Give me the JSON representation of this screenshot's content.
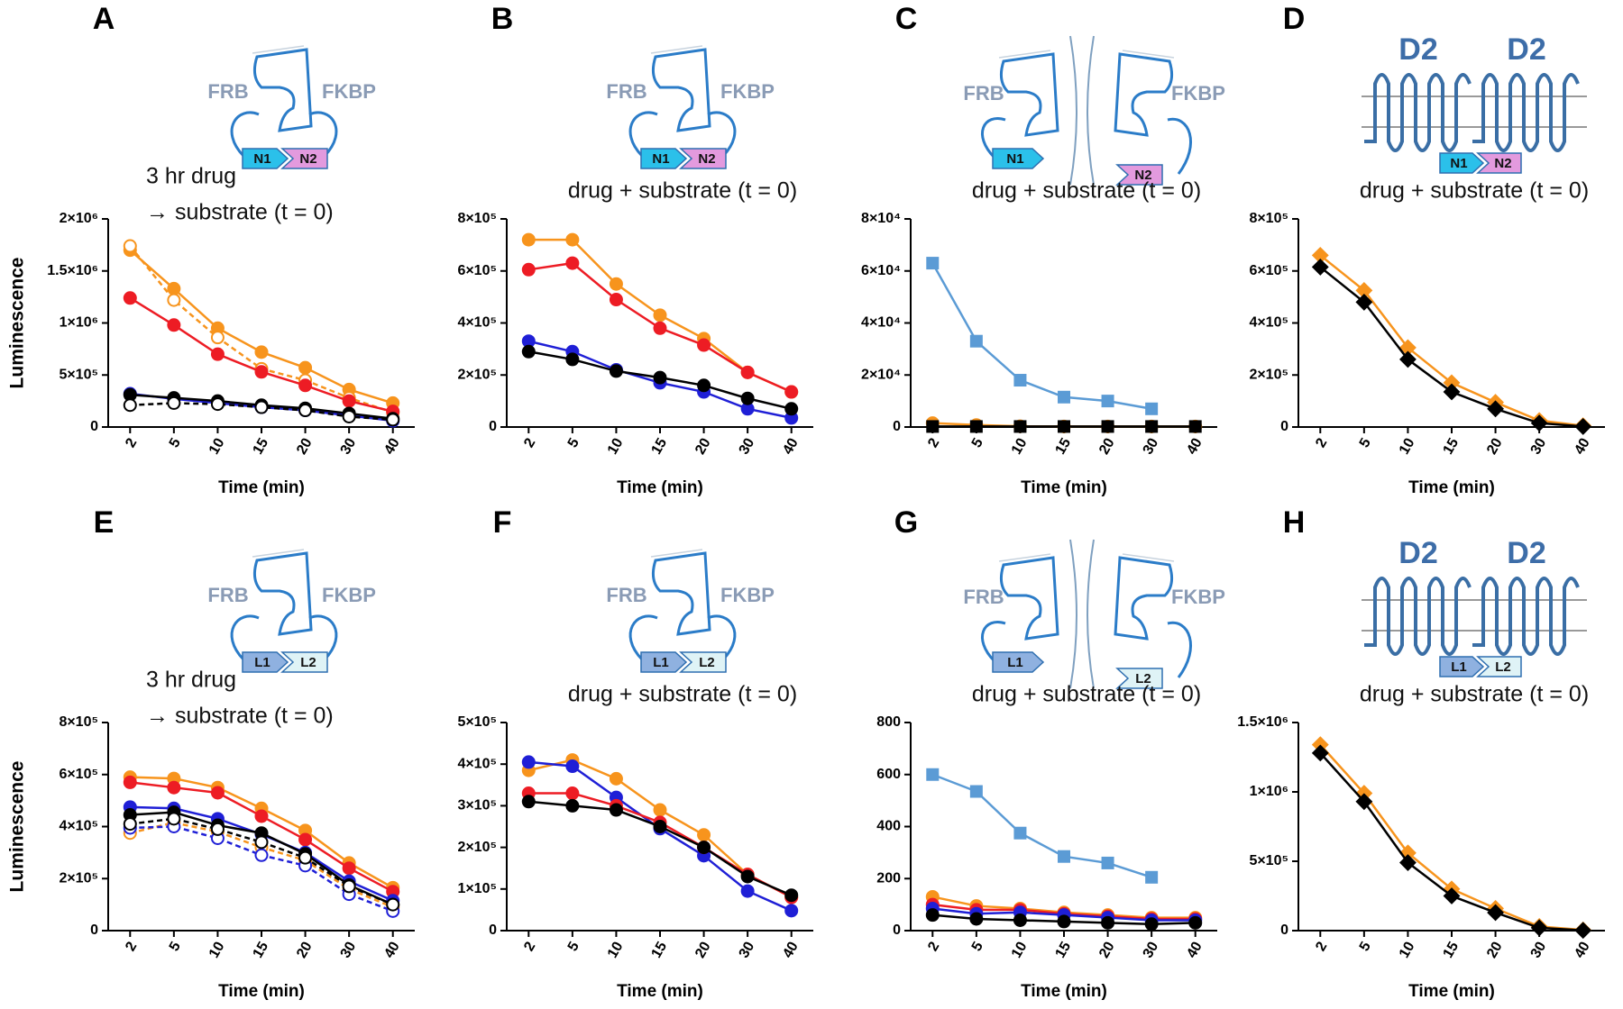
{
  "chart_data": [
    {
      "type": "line",
      "panel": "A",
      "diagram": {
        "shape": "dimer",
        "labels": [
          "FRB",
          "FKBP",
          "N1",
          "N2"
        ],
        "colors": [
          "#2bc0ea",
          "#e39ade"
        ]
      },
      "subtitle": [
        "3 hr drug",
        "→ substrate (t = 0)"
      ],
      "ylabel": "Luminescence",
      "xlabel": "Time (min)",
      "categories": [
        "2",
        "5",
        "10",
        "15",
        "20",
        "30",
        "40"
      ],
      "ylim": [
        0,
        2000000
      ],
      "yticks": [
        0,
        {
          "value": 500000,
          "label": "5×10⁵"
        },
        {
          "value": 1000000,
          "label": "1×10⁶"
        },
        {
          "value": 1500000,
          "label": "1.5×10⁶"
        },
        {
          "value": 2000000,
          "label": "2×10⁶"
        }
      ],
      "series": [
        {
          "color": "#f7941d",
          "marker": "circle",
          "values": [
            1700000,
            1330000,
            950000,
            720000,
            570000,
            360000,
            230000
          ]
        },
        {
          "color": "#f7941d",
          "marker": "circle",
          "open": true,
          "dashed": true,
          "values": [
            1740000,
            1220000,
            860000,
            560000,
            450000,
            280000,
            140000
          ]
        },
        {
          "color": "#ed1c24",
          "marker": "circle",
          "values": [
            1240000,
            980000,
            700000,
            530000,
            400000,
            250000,
            150000
          ]
        },
        {
          "color": "#1f1fd6",
          "marker": "circle",
          "values": [
            320000,
            270000,
            230000,
            190000,
            160000,
            110000,
            60000
          ]
        },
        {
          "color": "#000000",
          "marker": "circle",
          "values": [
            310000,
            280000,
            250000,
            210000,
            180000,
            130000,
            80000
          ]
        },
        {
          "color": "#000000",
          "marker": "circle",
          "open": true,
          "dashed": true,
          "values": [
            210000,
            230000,
            220000,
            190000,
            160000,
            100000,
            70000
          ]
        }
      ]
    },
    {
      "type": "line",
      "panel": "B",
      "diagram": {
        "shape": "dimer",
        "labels": [
          "FRB",
          "FKBP",
          "N1",
          "N2"
        ],
        "colors": [
          "#2bc0ea",
          "#e39ade"
        ]
      },
      "subtitle": "drug + substrate (t = 0)",
      "xlabel": "Time (min)",
      "categories": [
        "2",
        "5",
        "10",
        "15",
        "20",
        "30",
        "40"
      ],
      "ylim": [
        0,
        800000
      ],
      "yticks": [
        0,
        {
          "value": 200000,
          "label": "2×10⁵"
        },
        {
          "value": 400000,
          "label": "4×10⁵"
        },
        {
          "value": 600000,
          "label": "6×10⁵"
        },
        {
          "value": 800000,
          "label": "8×10⁵"
        }
      ],
      "series": [
        {
          "color": "#f7941d",
          "marker": "circle",
          "values": [
            720000,
            720000,
            550000,
            430000,
            340000,
            210000,
            135000
          ]
        },
        {
          "color": "#ed1c24",
          "marker": "circle",
          "values": [
            605000,
            630000,
            490000,
            380000,
            315000,
            210000,
            135000
          ]
        },
        {
          "color": "#1f1fd6",
          "marker": "circle",
          "values": [
            330000,
            290000,
            220000,
            170000,
            135000,
            70000,
            35000
          ]
        },
        {
          "color": "#000000",
          "marker": "circle",
          "values": [
            290000,
            260000,
            215000,
            190000,
            160000,
            110000,
            70000
          ]
        }
      ]
    },
    {
      "type": "line",
      "panel": "C",
      "diagram": {
        "shape": "split",
        "labels": [
          "FRB",
          "FKBP",
          "N1",
          "N2"
        ],
        "colors": [
          "#2bc0ea",
          "#e39ade"
        ]
      },
      "subtitle": "drug + substrate (t = 0)",
      "xlabel": "Time (min)",
      "categories": [
        "2",
        "5",
        "10",
        "15",
        "20",
        "30",
        "40"
      ],
      "ylim": [
        0,
        80000
      ],
      "yticks": [
        0,
        {
          "value": 20000,
          "label": "2×10⁴"
        },
        {
          "value": 40000,
          "label": "4×10⁴"
        },
        {
          "value": 60000,
          "label": "6×10⁴"
        },
        {
          "value": 80000,
          "label": "8×10⁴"
        }
      ],
      "series": [
        {
          "color": "#5b9bd5",
          "marker": "square",
          "values": [
            63000,
            33000,
            18000,
            11500,
            10000,
            7000,
            null
          ]
        },
        {
          "color": "#f7941d",
          "marker": "circle",
          "values": [
            1500,
            800,
            300,
            200,
            200,
            200,
            200
          ]
        },
        {
          "color": "#000000",
          "marker": "square",
          "values": [
            200,
            200,
            200,
            200,
            200,
            200,
            200
          ]
        }
      ]
    },
    {
      "type": "line",
      "panel": "D",
      "diagram": {
        "shape": "d2",
        "labels": [
          "D2",
          "D2",
          "N1",
          "N2"
        ],
        "colors": [
          "#2bc0ea",
          "#e39ade"
        ]
      },
      "subtitle": "drug + substrate (t = 0)",
      "xlabel": "Time (min)",
      "categories": [
        "2",
        "5",
        "10",
        "15",
        "20",
        "30",
        "40"
      ],
      "ylim": [
        0,
        800000
      ],
      "yticks": [
        0,
        {
          "value": 200000,
          "label": "2×10⁵"
        },
        {
          "value": 400000,
          "label": "4×10⁵"
        },
        {
          "value": 600000,
          "label": "6×10⁵"
        },
        {
          "value": 800000,
          "label": "8×10⁵"
        }
      ],
      "series": [
        {
          "color": "#f7941d",
          "marker": "diamond",
          "values": [
            660000,
            525000,
            305000,
            170000,
            95000,
            25000,
            5000
          ]
        },
        {
          "color": "#000000",
          "marker": "diamond",
          "values": [
            615000,
            480000,
            260000,
            135000,
            70000,
            15000,
            2000
          ]
        }
      ]
    },
    {
      "type": "line",
      "panel": "E",
      "diagram": {
        "shape": "dimer",
        "labels": [
          "FRB",
          "FKBP",
          "L1",
          "L2"
        ],
        "colors": [
          "#8fb1e0",
          "#dff3f6"
        ]
      },
      "subtitle": [
        "3 hr drug",
        "→ substrate (t = 0)"
      ],
      "ylabel": "Luminescence",
      "xlabel": "Time (min)",
      "categories": [
        "2",
        "5",
        "10",
        "15",
        "20",
        "30",
        "40"
      ],
      "ylim": [
        0,
        800000
      ],
      "yticks": [
        0,
        {
          "value": 200000,
          "label": "2×10⁵"
        },
        {
          "value": 400000,
          "label": "4×10⁵"
        },
        {
          "value": 600000,
          "label": "6×10⁵"
        },
        {
          "value": 800000,
          "label": "8×10⁵"
        }
      ],
      "series": [
        {
          "color": "#f7941d",
          "marker": "circle",
          "values": [
            590000,
            585000,
            550000,
            470000,
            385000,
            260000,
            165000
          ]
        },
        {
          "color": "#ed1c24",
          "marker": "circle",
          "values": [
            570000,
            550000,
            530000,
            440000,
            350000,
            240000,
            150000
          ]
        },
        {
          "color": "#1f1fd6",
          "marker": "circle",
          "values": [
            475000,
            470000,
            430000,
            370000,
            300000,
            190000,
            115000
          ]
        },
        {
          "color": "#000000",
          "marker": "circle",
          "values": [
            445000,
            455000,
            405000,
            375000,
            295000,
            175000,
            100000
          ]
        },
        {
          "color": "#f7941d",
          "marker": "circle",
          "open": true,
          "dashed": true,
          "values": [
            375000,
            415000,
            380000,
            320000,
            270000,
            160000,
            90000
          ]
        },
        {
          "color": "#1f1fd6",
          "marker": "circle",
          "open": true,
          "dashed": true,
          "values": [
            395000,
            400000,
            355000,
            290000,
            250000,
            140000,
            75000
          ]
        },
        {
          "color": "#000000",
          "marker": "circle",
          "open": true,
          "dashed": true,
          "values": [
            410000,
            430000,
            390000,
            340000,
            280000,
            170000,
            100000
          ]
        }
      ]
    },
    {
      "type": "line",
      "panel": "F",
      "diagram": {
        "shape": "dimer",
        "labels": [
          "FRB",
          "FKBP",
          "L1",
          "L2"
        ],
        "colors": [
          "#8fb1e0",
          "#dff3f6"
        ]
      },
      "subtitle": "drug + substrate (t = 0)",
      "xlabel": "Time (min)",
      "categories": [
        "2",
        "5",
        "10",
        "15",
        "20",
        "30",
        "40"
      ],
      "ylim": [
        0,
        500000
      ],
      "yticks": [
        0,
        {
          "value": 100000,
          "label": "1×10⁵"
        },
        {
          "value": 200000,
          "label": "2×10⁵"
        },
        {
          "value": 300000,
          "label": "3×10⁵"
        },
        {
          "value": 400000,
          "label": "4×10⁵"
        },
        {
          "value": 500000,
          "label": "5×10⁵"
        }
      ],
      "series": [
        {
          "color": "#f7941d",
          "marker": "circle",
          "values": [
            385000,
            410000,
            365000,
            290000,
            230000,
            135000,
            80000
          ]
        },
        {
          "color": "#1f1fd6",
          "marker": "circle",
          "values": [
            405000,
            395000,
            320000,
            245000,
            180000,
            95000,
            48000
          ]
        },
        {
          "color": "#ed1c24",
          "marker": "circle",
          "values": [
            330000,
            330000,
            300000,
            260000,
            200000,
            135000,
            80000
          ]
        },
        {
          "color": "#000000",
          "marker": "circle",
          "values": [
            310000,
            300000,
            290000,
            250000,
            200000,
            130000,
            85000
          ]
        }
      ]
    },
    {
      "type": "line",
      "panel": "G",
      "diagram": {
        "shape": "split",
        "labels": [
          "FRB",
          "FKBP",
          "L1",
          "L2"
        ],
        "colors": [
          "#8fb1e0",
          "#dff3f6"
        ]
      },
      "subtitle": "drug + substrate (t = 0)",
      "xlabel": "Time (min)",
      "categories": [
        "2",
        "5",
        "10",
        "15",
        "20",
        "30",
        "40"
      ],
      "ylim": [
        0,
        800
      ],
      "yticks": [
        0,
        200,
        400,
        600,
        800
      ],
      "series": [
        {
          "color": "#5b9bd5",
          "marker": "square",
          "values": [
            600,
            535,
            375,
            285,
            260,
            205,
            null
          ]
        },
        {
          "color": "#f7941d",
          "marker": "circle",
          "values": [
            130,
            95,
            85,
            70,
            60,
            50,
            50
          ]
        },
        {
          "color": "#ed1c24",
          "marker": "circle",
          "values": [
            100,
            80,
            80,
            65,
            55,
            45,
            45
          ]
        },
        {
          "color": "#1f1fd6",
          "marker": "circle",
          "values": [
            85,
            65,
            70,
            60,
            50,
            40,
            40
          ]
        },
        {
          "color": "#000000",
          "marker": "circle",
          "values": [
            60,
            45,
            40,
            35,
            30,
            25,
            30
          ]
        }
      ]
    },
    {
      "type": "line",
      "panel": "H",
      "diagram": {
        "shape": "d2",
        "labels": [
          "D2",
          "D2",
          "L1",
          "L2"
        ],
        "colors": [
          "#8fb1e0",
          "#dff3f6"
        ]
      },
      "subtitle": "drug + substrate (t = 0)",
      "xlabel": "Time (min)",
      "categories": [
        "2",
        "5",
        "10",
        "15",
        "20",
        "30",
        "40"
      ],
      "ylim": [
        0,
        1500000
      ],
      "yticks": [
        0,
        {
          "value": 500000,
          "label": "5×10⁵"
        },
        {
          "value": 1000000,
          "label": "1×10⁶"
        },
        {
          "value": 1500000,
          "label": "1.5×10⁶"
        }
      ],
      "series": [
        {
          "color": "#f7941d",
          "marker": "diamond",
          "values": [
            1340000,
            990000,
            560000,
            300000,
            160000,
            30000,
            5000
          ]
        },
        {
          "color": "#000000",
          "marker": "diamond",
          "values": [
            1280000,
            930000,
            490000,
            250000,
            130000,
            20000,
            2000
          ]
        }
      ]
    }
  ]
}
